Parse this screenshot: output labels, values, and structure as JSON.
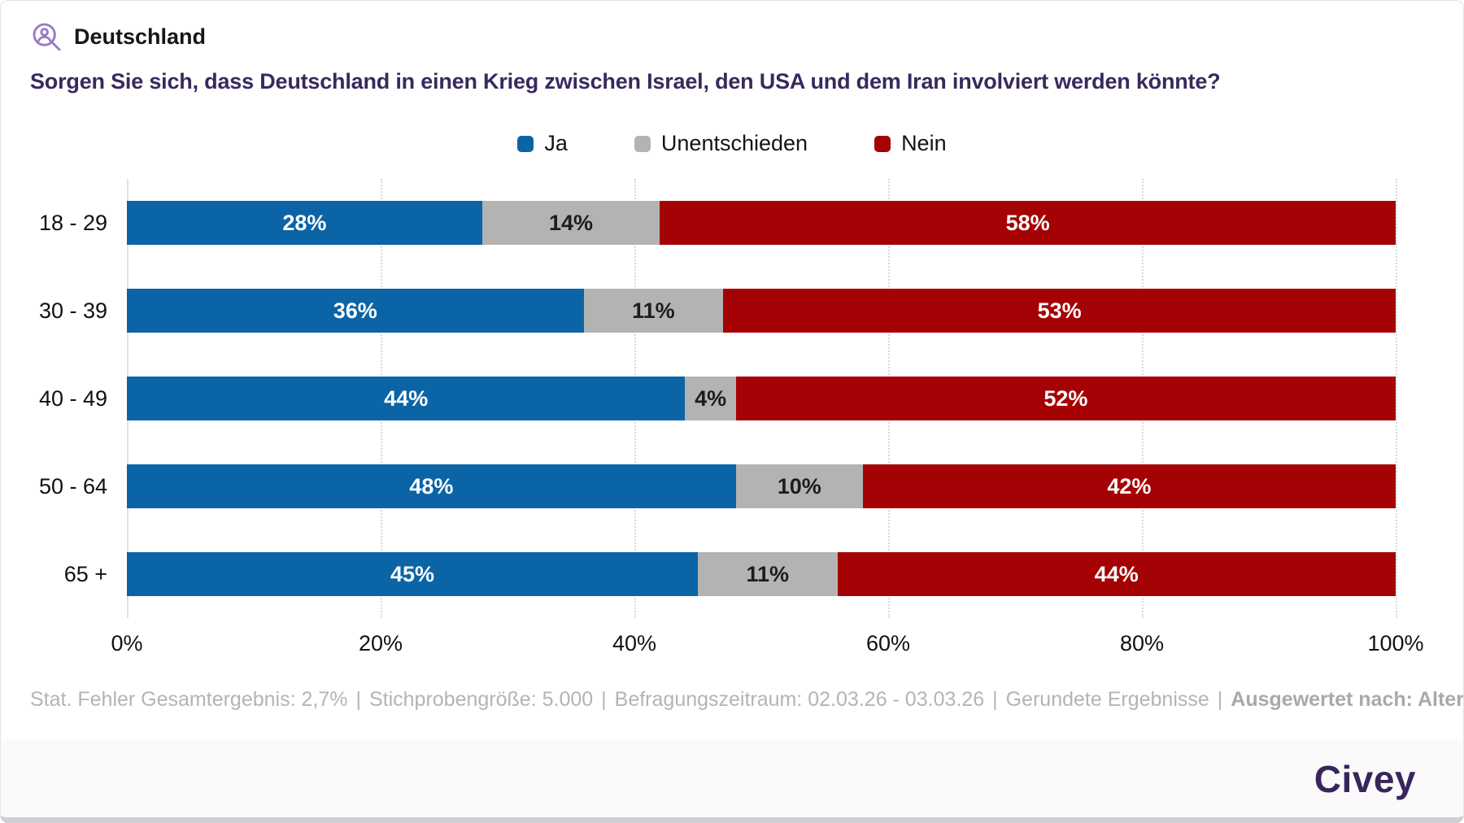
{
  "header": {
    "icon": "person-search-icon",
    "region_label": "Deutschland"
  },
  "title": "Sorgen Sie sich, dass Deutschland in einen Krieg zwischen Israel, den USA und dem Iran involviert werden könnte?",
  "colors": {
    "ja_blue": "#0b64a6",
    "unentschieden_gray": "#b3b3b3",
    "nein_red": "#a50205",
    "title_purple": "#39295d",
    "brand_purple": "#37255b",
    "icon_purple": "#9678c8"
  },
  "chart_data": {
    "type": "bar",
    "orientation": "horizontal",
    "stacked": true,
    "title": "Sorgen Sie sich, dass Deutschland in einen Krieg zwischen Israel, den USA und dem Iran involviert werden könnte?",
    "categories": [
      "18 - 29",
      "30 - 39",
      "40 - 49",
      "50 - 64",
      "65 +"
    ],
    "series": [
      {
        "name": "Ja",
        "color": "#0b64a6",
        "label_color": "#ffffff",
        "values": [
          28,
          36,
          44,
          48,
          45
        ]
      },
      {
        "name": "Unentschieden",
        "color": "#b3b3b3",
        "label_color": "#1d1d1d",
        "values": [
          14,
          11,
          4,
          10,
          11
        ]
      },
      {
        "name": "Nein",
        "color": "#a50205",
        "label_color": "#ffffff",
        "values": [
          58,
          53,
          52,
          42,
          44
        ]
      }
    ],
    "x_ticks": [
      "0%",
      "20%",
      "40%",
      "60%",
      "80%",
      "100%"
    ],
    "xlim": [
      0,
      100
    ],
    "grid": "dotted vertical gridlines every 20%, solid line at 0%",
    "legend_position": "top-center",
    "value_suffix": "%"
  },
  "footnote": {
    "separator": "|",
    "segments": [
      "Stat. Fehler Gesamtergebnis: 2,7%",
      "Stichprobengröße: 5.000",
      "Befragungszeitraum: 02.03.26 - 03.03.26",
      "Gerundete Ergebnisse",
      "Ausgewertet nach: Alter"
    ],
    "emphasized_segment": "Ausgewertet nach: Alter"
  },
  "brand": {
    "logo_text": "Civey"
  }
}
